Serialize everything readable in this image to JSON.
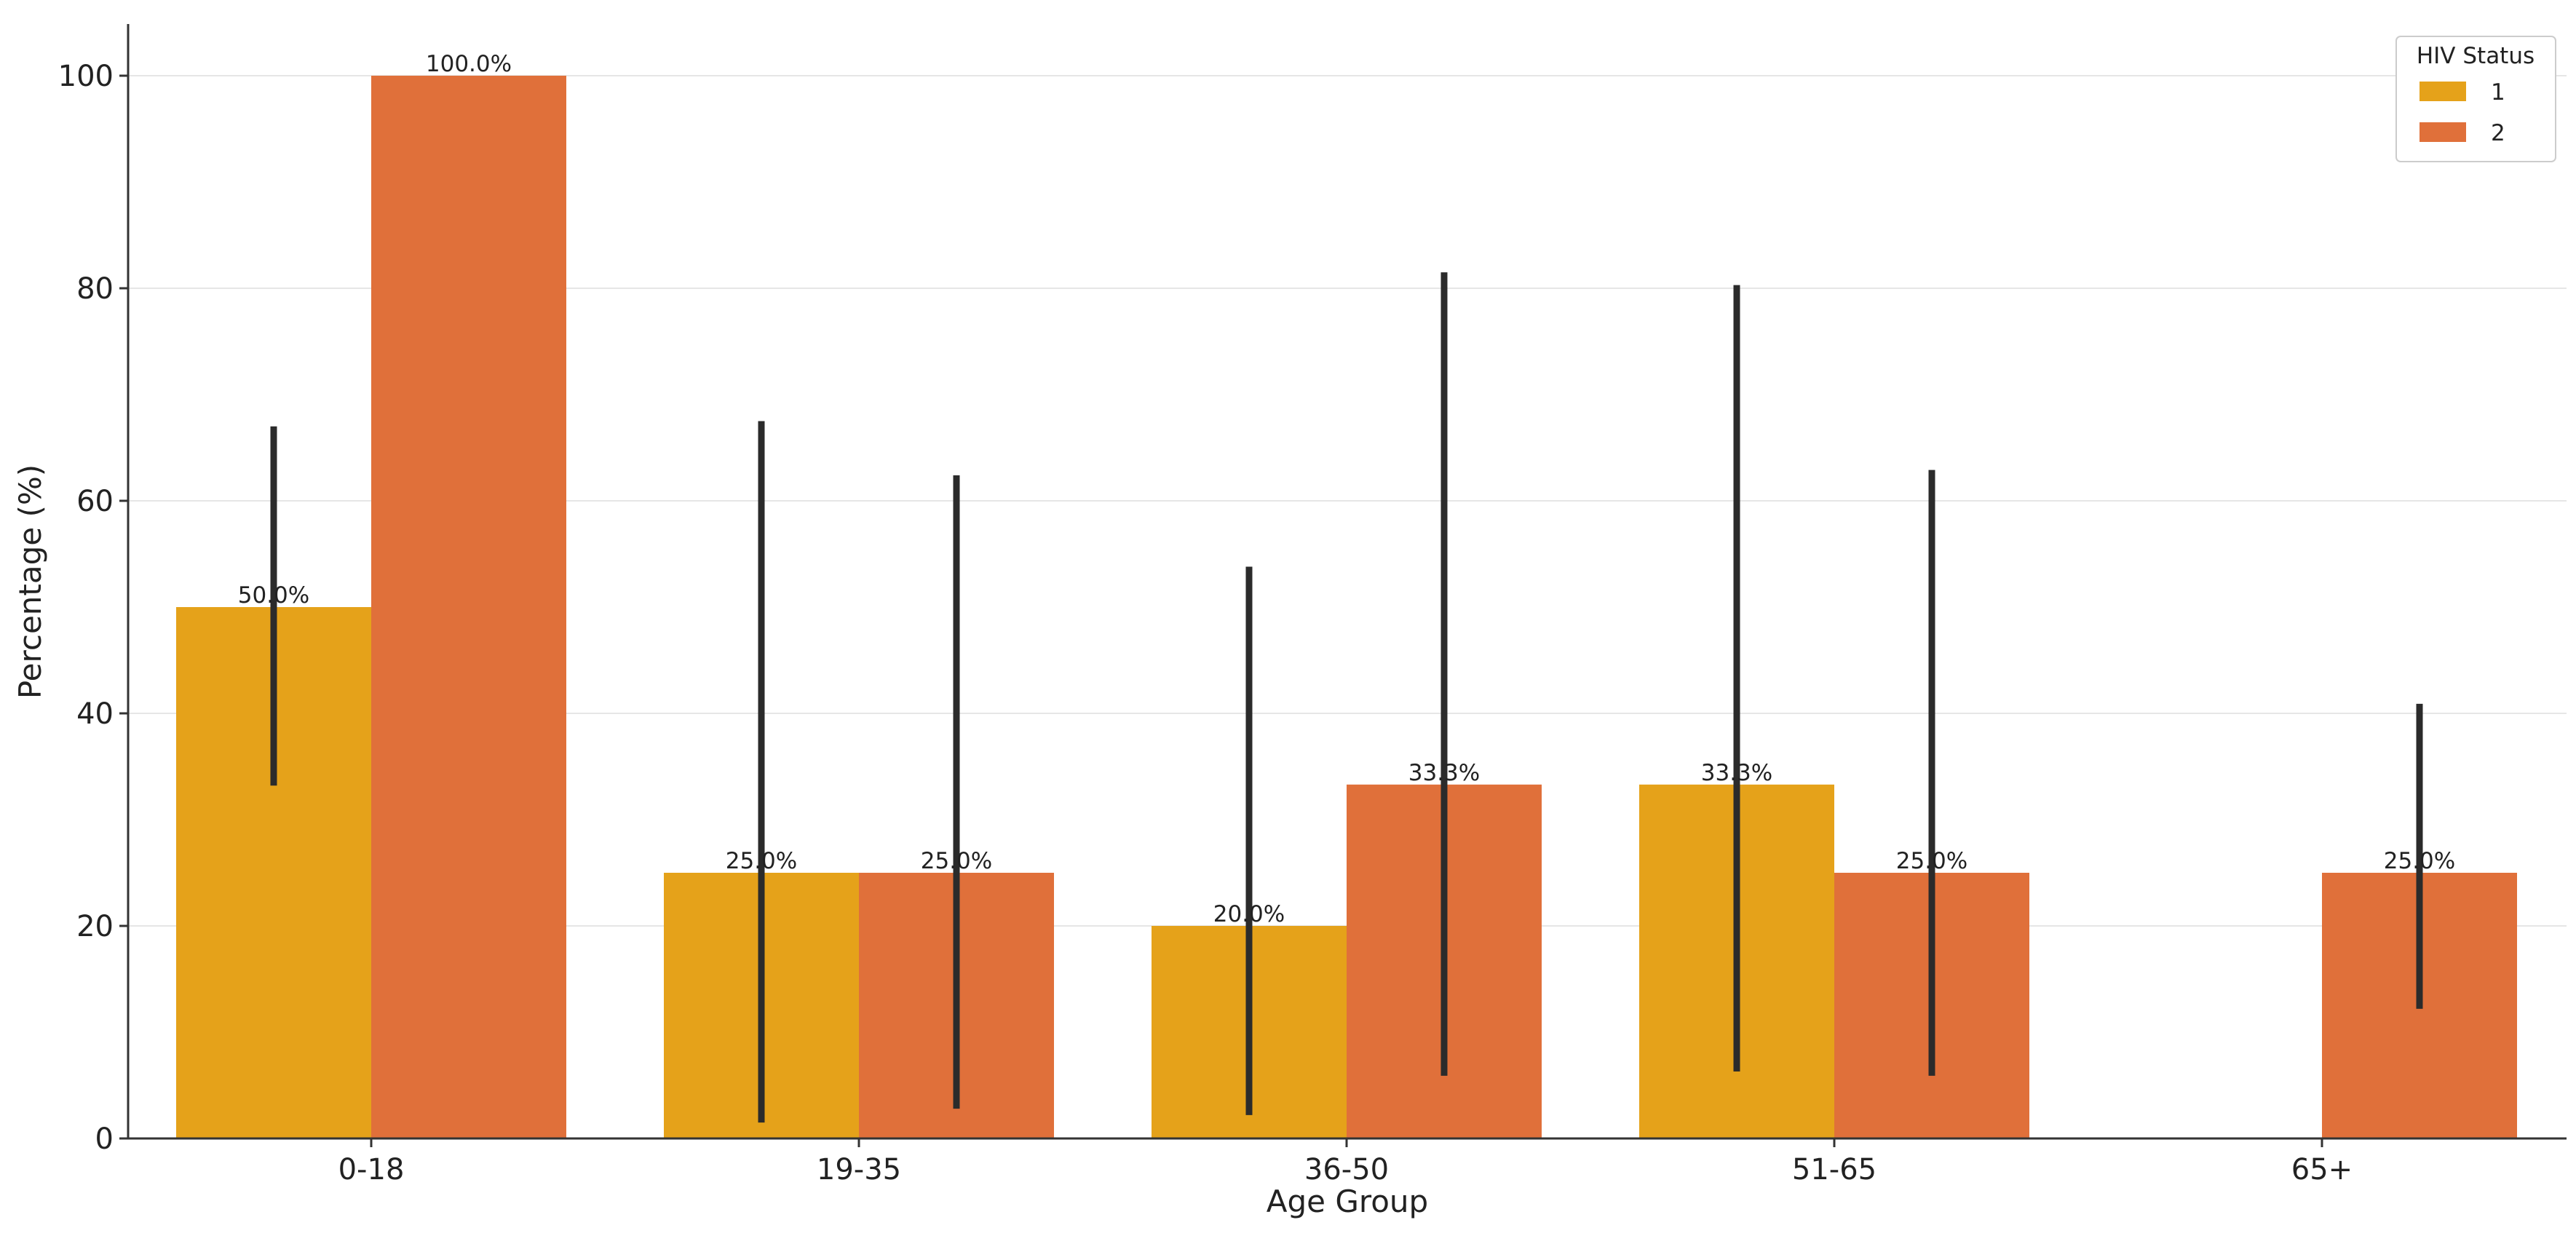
{
  "chart_data": {
    "type": "bar",
    "title": "",
    "xlabel": "Age Group",
    "ylabel": "Percentage (%)",
    "categories": [
      "0-18",
      "19-35",
      "36-50",
      "51-65",
      "65+"
    ],
    "ylim": [
      0,
      105
    ],
    "yticks": [
      0,
      20,
      40,
      60,
      80,
      100
    ],
    "grid": "horizontal",
    "legend": {
      "title": "HIV Status",
      "placement": "top-right"
    },
    "series": [
      {
        "name": "1",
        "color": "#E5A21A",
        "values": [
          50.0,
          25.0,
          20.0,
          33.3,
          null
        ],
        "labels": [
          "50.0%",
          "25.0%",
          "20.0%",
          "33.3%",
          ""
        ],
        "error_low": [
          33.2,
          1.5,
          2.2,
          6.3,
          null
        ],
        "error_high": [
          67.0,
          67.5,
          53.8,
          80.3,
          null
        ]
      },
      {
        "name": "2",
        "color": "#E0703A",
        "values": [
          100.0,
          25.0,
          33.3,
          25.0,
          25.0
        ],
        "labels": [
          "100.0%",
          "25.0%",
          "33.3%",
          "25.0%",
          "25.0%"
        ],
        "error_low": [
          null,
          2.8,
          5.9,
          5.9,
          12.2
        ],
        "error_high": [
          null,
          62.4,
          81.5,
          62.9,
          40.9
        ]
      }
    ]
  }
}
